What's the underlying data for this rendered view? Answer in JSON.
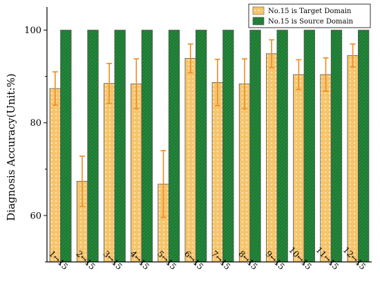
{
  "chart_data": {
    "type": "bar",
    "categories": [
      "1↔15",
      "2↔15",
      "3↔15",
      "4↔15",
      "5↔15",
      "6↔15",
      "7↔15",
      "8↔15",
      "9↔15",
      "10↔15",
      "11↔15",
      "12↔15"
    ],
    "series": [
      {
        "name": "No.15 is Target Domain",
        "values": [
          87.4,
          67.4,
          88.5,
          88.4,
          66.8,
          93.9,
          88.7,
          88.4,
          94.9,
          90.4,
          90.4,
          94.5
        ],
        "errors": [
          3.6,
          5.4,
          4.3,
          5.4,
          7.2,
          3.1,
          5.0,
          5.4,
          3.0,
          3.2,
          3.6,
          2.5
        ],
        "color": "#f6c46a"
      },
      {
        "name": "No.15 is Source Domain",
        "values": [
          100,
          100,
          100,
          100,
          100,
          100,
          100,
          100,
          100,
          100,
          100,
          100
        ],
        "color": "#1d7a32"
      }
    ],
    "xlabel": "",
    "ylabel": "Diagnosis Accuracy(Unit:%)",
    "ylim": [
      50,
      105
    ],
    "yticks": [
      60,
      80,
      100
    ],
    "legend_position": "top-right",
    "grid": false,
    "error_bar_color": "#f08a1e"
  }
}
